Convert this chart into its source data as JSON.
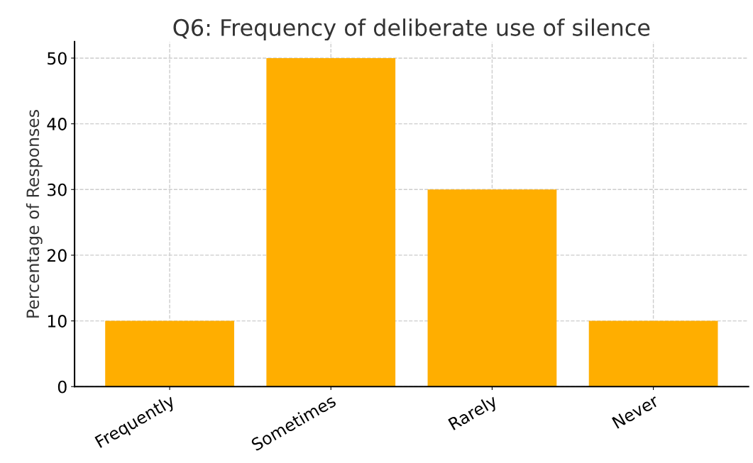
{
  "chart_data": {
    "type": "bar",
    "title": "Q6: Frequency of deliberate use of silence",
    "ylabel": "Percentage of Responses",
    "categories": [
      "Frequently",
      "Sometimes",
      "Rarely",
      "Never"
    ],
    "values": [
      10,
      50,
      30,
      10
    ],
    "color": "#ffae00",
    "ylim": [
      0,
      52.5
    ],
    "yticks": [
      0,
      10,
      20,
      30,
      40,
      50
    ],
    "grid": true,
    "legend": false
  }
}
